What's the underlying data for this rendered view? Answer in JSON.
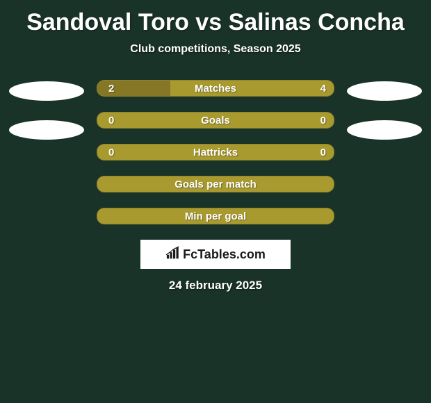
{
  "background_color": "#1a3329",
  "title": {
    "player1": "Sandoval Toro",
    "vs": "vs",
    "player2": "Salinas Concha",
    "color": "#ffffff",
    "fontsize": 34
  },
  "subtitle": {
    "text": "Club competitions, Season 2025",
    "color": "#ffffff",
    "fontsize": 16
  },
  "stats": {
    "bar_color": "#a89a2f",
    "fill_color": "#857725",
    "text_color": "#ffffff",
    "rows": [
      {
        "label": "Matches",
        "left": "2",
        "right": "4",
        "fill_pct": 31
      },
      {
        "label": "Goals",
        "left": "0",
        "right": "0",
        "fill_pct": 0
      },
      {
        "label": "Hattricks",
        "left": "0",
        "right": "0",
        "fill_pct": 0
      },
      {
        "label": "Goals per match",
        "left": "",
        "right": "",
        "fill_pct": 0
      },
      {
        "label": "Min per goal",
        "left": "",
        "right": "",
        "fill_pct": 0
      }
    ]
  },
  "avatars": {
    "left_count": 2,
    "right_count": 2,
    "color": "#ffffff"
  },
  "logo": {
    "icon_name": "bar-chart-icon",
    "text": "FcTables.com",
    "bg_color": "#ffffff",
    "text_color": "#1a1a1a"
  },
  "date": {
    "text": "24 february 2025",
    "color": "#ffffff",
    "fontsize": 17
  }
}
